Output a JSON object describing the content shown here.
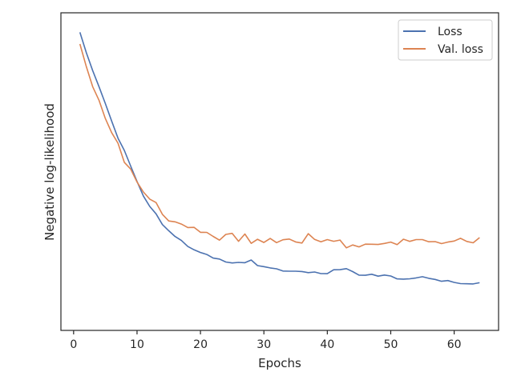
{
  "chart_data": {
    "type": "line",
    "title": "",
    "xlabel": "Epochs",
    "ylabel": "Negative log-likelihood",
    "xlim": [
      -2,
      67
    ],
    "ylim": [
      0.0,
      1.0
    ],
    "xticks": [
      0,
      10,
      20,
      30,
      40,
      50,
      60
    ],
    "y_tick_labels_shown": false,
    "grid": false,
    "legend_position": "top-right",
    "series": [
      {
        "name": "Loss",
        "color": "#4c72b0",
        "x": [
          1,
          2,
          3,
          4,
          5,
          6,
          7,
          8,
          9,
          10,
          11,
          12,
          13,
          14,
          15,
          16,
          17,
          18,
          19,
          20,
          21,
          22,
          23,
          24,
          25,
          26,
          27,
          28,
          29,
          30,
          31,
          32,
          33,
          34,
          35,
          36,
          37,
          38,
          39,
          40,
          41,
          42,
          43,
          44,
          45,
          46,
          47,
          48,
          49,
          50,
          51,
          52,
          53,
          54,
          55,
          56,
          57,
          58,
          59,
          60,
          61,
          62,
          63,
          64
        ],
        "values": [
          0.9765,
          0.9053,
          0.8431,
          0.7869,
          0.7279,
          0.6667,
          0.6071,
          0.5643,
          0.5097,
          0.4557,
          0.4047,
          0.3687,
          0.3428,
          0.3053,
          0.2837,
          0.2638,
          0.2496,
          0.2288,
          0.217,
          0.2077,
          0.2007,
          0.1883,
          0.1849,
          0.1747,
          0.1712,
          0.1731,
          0.172,
          0.1817,
          0.162,
          0.1584,
          0.154,
          0.1509,
          0.1429,
          0.1424,
          0.1424,
          0.1413,
          0.1373,
          0.1396,
          0.1342,
          0.1339,
          0.1475,
          0.1478,
          0.1515,
          0.141,
          0.1287,
          0.1283,
          0.1319,
          0.1251,
          0.1291,
          0.1256,
          0.1156,
          0.1147,
          0.116,
          0.1191,
          0.1231,
          0.1175,
          0.1136,
          0.1074,
          0.1097,
          0.1034,
          0.0992,
          0.0985,
          0.098,
          0.1023
        ]
      },
      {
        "name": "Val. loss",
        "color": "#dd8452",
        "x": [
          1,
          2,
          3,
          4,
          5,
          6,
          7,
          8,
          9,
          10,
          11,
          12,
          13,
          14,
          15,
          16,
          17,
          18,
          19,
          20,
          21,
          22,
          23,
          24,
          25,
          26,
          27,
          28,
          29,
          30,
          31,
          32,
          33,
          34,
          35,
          36,
          37,
          38,
          39,
          40,
          41,
          42,
          43,
          44,
          45,
          46,
          47,
          48,
          49,
          50,
          51,
          52,
          53,
          54,
          55,
          56,
          57,
          58,
          59,
          60,
          61,
          62,
          63,
          64
        ],
        "values": [
          0.9358,
          0.8567,
          0.7868,
          0.7395,
          0.6758,
          0.6262,
          0.5893,
          0.5227,
          0.4993,
          0.4535,
          0.4189,
          0.3942,
          0.382,
          0.3411,
          0.3179,
          0.3147,
          0.307,
          0.295,
          0.2956,
          0.2783,
          0.278,
          0.264,
          0.2509,
          0.2709,
          0.2746,
          0.2468,
          0.2724,
          0.2396,
          0.254,
          0.2426,
          0.2566,
          0.2421,
          0.2521,
          0.2547,
          0.2446,
          0.2409,
          0.2734,
          0.2534,
          0.245,
          0.2528,
          0.247,
          0.251,
          0.224,
          0.234,
          0.2274,
          0.2368,
          0.2367,
          0.2358,
          0.2393,
          0.2442,
          0.2352,
          0.2543,
          0.2466,
          0.2527,
          0.2527,
          0.2452,
          0.2459,
          0.2387,
          0.2442,
          0.2478,
          0.2573,
          0.2465,
          0.2416,
          0.2597
        ]
      }
    ]
  }
}
